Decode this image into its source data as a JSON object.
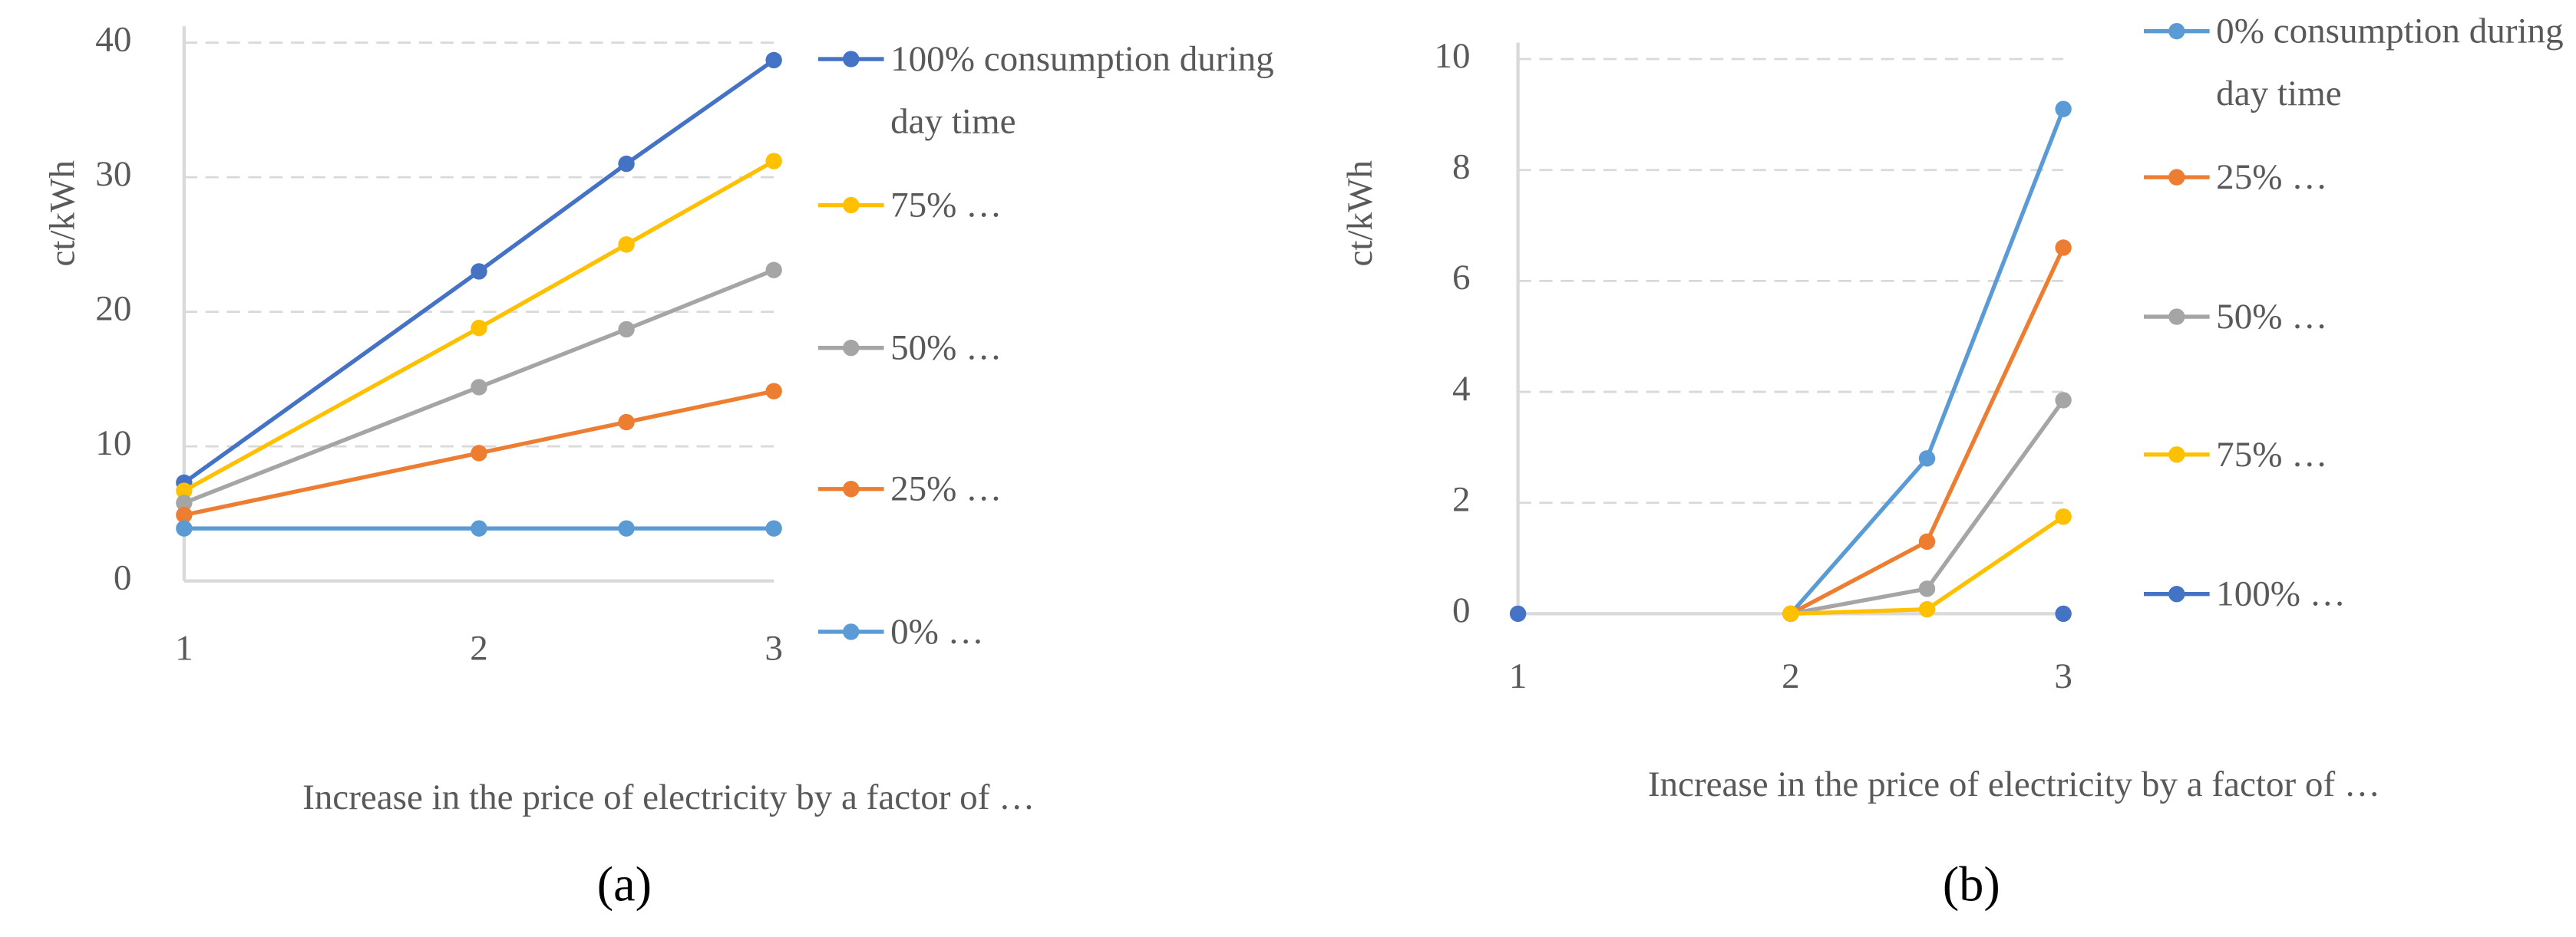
{
  "chart_data": [
    {
      "type": "line",
      "caption": "(a)",
      "ylabel": "ct/kWh",
      "xlabel": "Increase in the price of electricity by a factor of …",
      "x": [
        1,
        2,
        2.5,
        3
      ],
      "xlim": [
        1,
        3
      ],
      "xticks": [
        1,
        2,
        3
      ],
      "ylim": [
        0,
        40
      ],
      "yticks": [
        0,
        10,
        20,
        30,
        40
      ],
      "grid": true,
      "legend": "right",
      "series": [
        {
          "name": "100% consumption during day time",
          "color": "#4472c4",
          "values": [
            7.3,
            23,
            31,
            38.7
          ]
        },
        {
          "name": "75% …",
          "color": "#ffc000",
          "values": [
            6.7,
            18.8,
            25,
            31.2
          ]
        },
        {
          "name": "50% …",
          "color": "#a5a5a5",
          "values": [
            5.8,
            14.4,
            18.7,
            23.1
          ]
        },
        {
          "name": "25% …",
          "color": "#ed7d31",
          "values": [
            4.9,
            9.5,
            11.8,
            14.1
          ]
        },
        {
          "name": "0% …",
          "color": "#5b9bd5",
          "values": [
            3.9,
            3.9,
            3.9,
            3.9
          ]
        }
      ]
    },
    {
      "type": "line",
      "caption": "(b)",
      "ylabel": "ct/kWh",
      "xlabel": "Increase in the price of electricity by a factor of …",
      "x": [
        1,
        2,
        2.5,
        3
      ],
      "xlim": [
        1,
        3
      ],
      "xticks": [
        1,
        2,
        3
      ],
      "ylim": [
        0,
        10
      ],
      "yticks": [
        0,
        2,
        4,
        6,
        8,
        10
      ],
      "grid": true,
      "legend": "right",
      "series": [
        {
          "name": "0% consumption during day time",
          "color": "#5b9bd5",
          "values": [
            null,
            0,
            2.8,
            9.1
          ]
        },
        {
          "name": "25% …",
          "color": "#ed7d31",
          "values": [
            null,
            0,
            1.3,
            6.6
          ]
        },
        {
          "name": "50% …",
          "color": "#a5a5a5",
          "values": [
            null,
            0,
            0.45,
            3.85
          ]
        },
        {
          "name": "75% …",
          "color": "#ffc000",
          "values": [
            null,
            0,
            0.08,
            1.75
          ]
        },
        {
          "name": "100% …",
          "color": "#4472c4",
          "values": [
            0,
            null,
            null,
            0
          ]
        }
      ]
    }
  ]
}
